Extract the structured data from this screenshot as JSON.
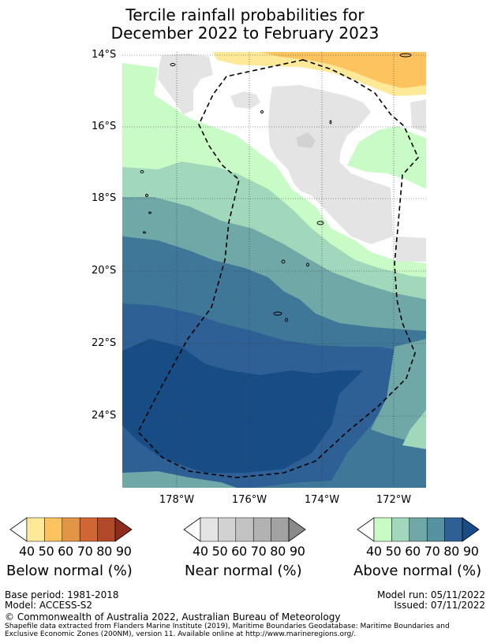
{
  "title": {
    "line1": "Tercile rainfall probabilities for",
    "line2": "December 2022 to February 2023"
  },
  "axes": {
    "latitudes": [
      "14°S",
      "16°S",
      "18°S",
      "20°S",
      "22°S",
      "24°S"
    ],
    "longitudes": [
      "178°W",
      "176°W",
      "174°W",
      "172°W"
    ]
  },
  "legends": {
    "below": {
      "ticks": [
        "40",
        "50",
        "60",
        "70",
        "80",
        "90"
      ],
      "label": "Below normal (%)",
      "colors": [
        "#ffffff",
        "#fee999",
        "#fdc35f",
        "#e39547",
        "#cf6634",
        "#b24a2a",
        "#8e2c1e"
      ]
    },
    "near": {
      "ticks": [
        "40",
        "50",
        "60",
        "70",
        "80",
        "90"
      ],
      "label": "Near normal (%)",
      "colors": [
        "#ffffff",
        "#e4e4e4",
        "#d2d2d2",
        "#c2c2c2",
        "#b2b2b2",
        "#a2a2a2",
        "#8a8a8a"
      ]
    },
    "above": {
      "ticks": [
        "40",
        "50",
        "60",
        "70",
        "80",
        "90"
      ],
      "label": "Above normal (%)",
      "colors": [
        "#ffffff",
        "#c9fbc6",
        "#a1d7ba",
        "#6fa8a7",
        "#5592a1",
        "#2e5f95",
        "#184c85"
      ]
    }
  },
  "footer": {
    "base_period": "Base period: 1981-2018",
    "model": "Model: ACCESS-S2",
    "model_run": "Model run: 05/11/2022",
    "issued": "Issued: 07/11/2022",
    "copyright": "© Commonwealth of Australia 2022, Australian Bureau of Meteorology",
    "shapefile": "Shapefile data extracted from Flanders Marine Institute (2019), Maritime Boundaries Geodatabase: Maritime Boundaries and Exclusive Economic Zones (200NM), version 11. Available online at http://www.marineregions.org/."
  }
}
